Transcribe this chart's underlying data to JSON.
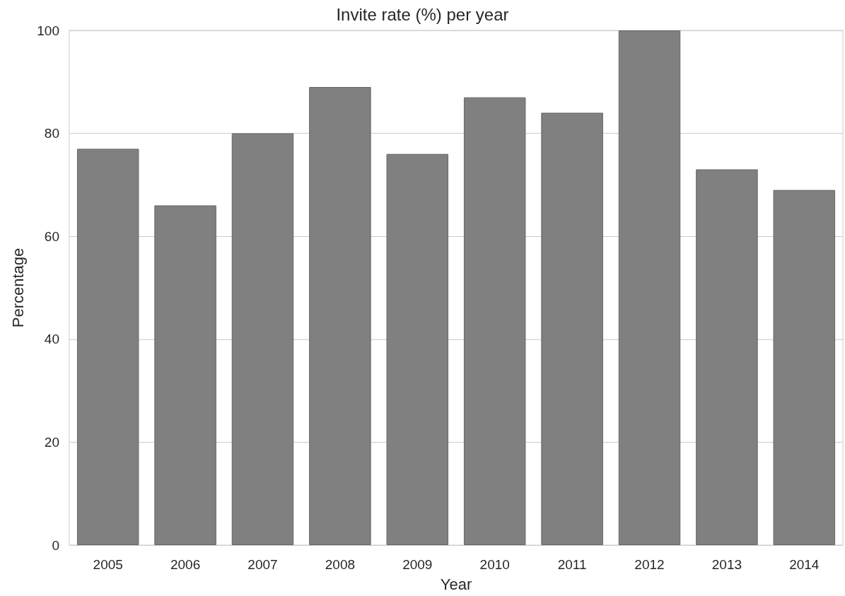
{
  "chart_data": {
    "type": "bar",
    "title": "Invite rate (%) per year",
    "xlabel": "Year",
    "ylabel": "Percentage",
    "categories": [
      "2005",
      "2006",
      "2007",
      "2008",
      "2009",
      "2010",
      "2011",
      "2012",
      "2013",
      "2014"
    ],
    "values": [
      77,
      66,
      80,
      89,
      76,
      87,
      84,
      100,
      73,
      69
    ],
    "color": "#808080",
    "ylim": [
      0,
      100
    ],
    "yticks": [
      0,
      20,
      40,
      60,
      80,
      100
    ],
    "grid": "y"
  }
}
